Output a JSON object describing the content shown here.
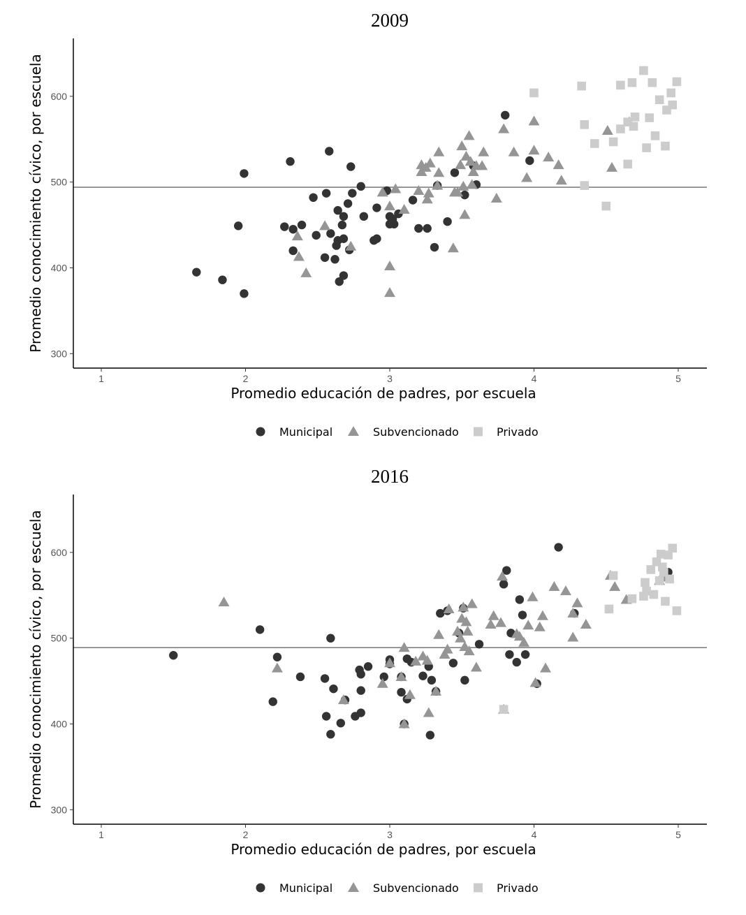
{
  "colors": {
    "Municipal": "#333333",
    "Subvencionado": "#959595",
    "Privado": "#cccccc",
    "reference_line": "#808080",
    "axis": "#000000"
  },
  "chart_data": [
    {
      "type": "scatter",
      "title": "2009",
      "xlabel": "Promedio educación de padres, por escuela",
      "ylabel": "Promedio conocimiento cívico, por escuela",
      "xlim": [
        0.8,
        5.2
      ],
      "ylim": [
        282,
        667
      ],
      "xticks": [
        1,
        2,
        3,
        4,
        5
      ],
      "yticks": [
        300,
        400,
        500,
        600
      ],
      "grid": false,
      "legend_position": "bottom",
      "reference_line": 494,
      "series": [
        {
          "name": "Municipal",
          "marker": "circle",
          "points": [
            [
              1.66,
              395
            ],
            [
              1.84,
              386
            ],
            [
              1.95,
              449
            ],
            [
              1.99,
              370
            ],
            [
              1.99,
              510
            ],
            [
              2.27,
              448
            ],
            [
              2.31,
              524
            ],
            [
              2.33,
              420
            ],
            [
              2.33,
              445
            ],
            [
              2.39,
              450
            ],
            [
              2.47,
              482
            ],
            [
              2.49,
              438
            ],
            [
              2.55,
              412
            ],
            [
              2.56,
              487
            ],
            [
              2.58,
              536
            ],
            [
              2.59,
              440
            ],
            [
              2.62,
              410
            ],
            [
              2.63,
              426
            ],
            [
              2.64,
              467
            ],
            [
              2.64,
              432
            ],
            [
              2.65,
              384
            ],
            [
              2.67,
              450
            ],
            [
              2.68,
              460
            ],
            [
              2.68,
              434
            ],
            [
              2.68,
              391
            ],
            [
              2.71,
              475
            ],
            [
              2.72,
              421
            ],
            [
              2.73,
              518
            ],
            [
              2.74,
              487
            ],
            [
              2.8,
              495
            ],
            [
              2.82,
              460
            ],
            [
              2.89,
              432
            ],
            [
              2.91,
              470
            ],
            [
              2.91,
              434
            ],
            [
              2.98,
              490
            ],
            [
              3.0,
              460
            ],
            [
              3.0,
              451
            ],
            [
              3.02,
              457
            ],
            [
              3.03,
              451
            ],
            [
              3.06,
              463
            ],
            [
              3.16,
              479
            ],
            [
              3.2,
              446
            ],
            [
              3.26,
              446
            ],
            [
              3.31,
              424
            ],
            [
              3.33,
              496
            ],
            [
              3.4,
              454
            ],
            [
              3.45,
              511
            ],
            [
              3.52,
              485
            ],
            [
              3.6,
              497
            ],
            [
              3.8,
              578
            ],
            [
              3.97,
              525
            ],
            [
              3.58,
              519
            ]
          ]
        },
        {
          "name": "Subvencionado",
          "marker": "triangle",
          "points": [
            [
              2.36,
              437
            ],
            [
              2.37,
              413
            ],
            [
              2.42,
              394
            ],
            [
              2.55,
              449
            ],
            [
              2.73,
              425
            ],
            [
              2.95,
              488
            ],
            [
              3.0,
              472
            ],
            [
              3.0,
              402
            ],
            [
              3.0,
              371
            ],
            [
              3.04,
              492
            ],
            [
              3.1,
              468
            ],
            [
              3.2,
              490
            ],
            [
              3.22,
              520
            ],
            [
              3.22,
              512
            ],
            [
              3.25,
              517
            ],
            [
              3.26,
              480
            ],
            [
              3.27,
              487
            ],
            [
              3.28,
              522
            ],
            [
              3.33,
              496
            ],
            [
              3.34,
              535
            ],
            [
              3.34,
              511
            ],
            [
              3.44,
              423
            ],
            [
              3.47,
              488
            ],
            [
              3.49,
              520
            ],
            [
              3.5,
              542
            ],
            [
              3.51,
              495
            ],
            [
              3.52,
              462
            ],
            [
              3.53,
              530
            ],
            [
              3.55,
              554
            ],
            [
              3.56,
              524
            ],
            [
              3.57,
              497
            ],
            [
              3.58,
              512
            ],
            [
              3.6,
              519
            ],
            [
              3.64,
              519
            ],
            [
              3.65,
              535
            ],
            [
              3.74,
              481
            ],
            [
              3.79,
              562
            ],
            [
              3.86,
              535
            ],
            [
              3.95,
              505
            ],
            [
              4.0,
              571
            ],
            [
              4.0,
              537
            ],
            [
              4.1,
              529
            ],
            [
              4.17,
              520
            ],
            [
              4.19,
              502
            ],
            [
              4.51,
              560
            ],
            [
              4.54,
              517
            ],
            [
              4.66,
              570
            ],
            [
              3.45,
              488
            ]
          ]
        },
        {
          "name": "Privado",
          "marker": "square",
          "points": [
            [
              4.0,
              604
            ],
            [
              4.33,
              612
            ],
            [
              4.35,
              567
            ],
            [
              4.35,
              496
            ],
            [
              4.42,
              545
            ],
            [
              4.5,
              472
            ],
            [
              4.55,
              547
            ],
            [
              4.6,
              562
            ],
            [
              4.6,
              613
            ],
            [
              4.65,
              521
            ],
            [
              4.65,
              570
            ],
            [
              4.68,
              616
            ],
            [
              4.69,
              565
            ],
            [
              4.7,
              576
            ],
            [
              4.76,
              630
            ],
            [
              4.78,
              540
            ],
            [
              4.8,
              575
            ],
            [
              4.82,
              616
            ],
            [
              4.84,
              554
            ],
            [
              4.87,
              596
            ],
            [
              4.91,
              542
            ],
            [
              4.92,
              584
            ],
            [
              4.95,
              604
            ],
            [
              4.96,
              590
            ],
            [
              4.99,
              617
            ]
          ]
        }
      ]
    },
    {
      "type": "scatter",
      "title": "2016",
      "xlabel": "Promedio educación de padres, por escuela",
      "ylabel": "Promedio conocimiento cívico, por escuela",
      "xlim": [
        0.8,
        5.2
      ],
      "ylim": [
        282,
        667
      ],
      "xticks": [
        1,
        2,
        3,
        4,
        5
      ],
      "yticks": [
        300,
        400,
        500,
        600
      ],
      "grid": false,
      "legend_position": "bottom",
      "reference_line": 489,
      "series": [
        {
          "name": "Municipal",
          "marker": "circle",
          "points": [
            [
              1.5,
              480
            ],
            [
              2.1,
              510
            ],
            [
              2.19,
              426
            ],
            [
              2.22,
              478
            ],
            [
              2.38,
              455
            ],
            [
              2.55,
              453
            ],
            [
              2.56,
              409
            ],
            [
              2.59,
              500
            ],
            [
              2.59,
              388
            ],
            [
              2.61,
              441
            ],
            [
              2.66,
              401
            ],
            [
              2.69,
              428
            ],
            [
              2.76,
              409
            ],
            [
              2.79,
              463
            ],
            [
              2.8,
              458
            ],
            [
              2.8,
              439
            ],
            [
              2.8,
              413
            ],
            [
              2.85,
              467
            ],
            [
              2.96,
              455
            ],
            [
              3.0,
              475
            ],
            [
              3.0,
              470
            ],
            [
              3.08,
              437
            ],
            [
              3.08,
              455
            ],
            [
              3.1,
              400
            ],
            [
              3.12,
              476
            ],
            [
              3.12,
              429
            ],
            [
              3.15,
              472
            ],
            [
              3.23,
              456
            ],
            [
              3.27,
              467
            ],
            [
              3.28,
              387
            ],
            [
              3.29,
              451
            ],
            [
              3.32,
              438
            ],
            [
              3.35,
              529
            ],
            [
              3.4,
              532
            ],
            [
              3.44,
              471
            ],
            [
              3.48,
              506
            ],
            [
              3.51,
              535
            ],
            [
              3.52,
              451
            ],
            [
              3.62,
              493
            ],
            [
              3.79,
              563
            ],
            [
              3.81,
              579
            ],
            [
              3.83,
              481
            ],
            [
              3.84,
              506
            ],
            [
              3.88,
              472
            ],
            [
              3.9,
              545
            ],
            [
              3.92,
              527
            ],
            [
              3.94,
              481
            ],
            [
              4.02,
              447
            ],
            [
              4.17,
              606
            ],
            [
              4.28,
              529
            ],
            [
              4.93,
              577
            ]
          ]
        },
        {
          "name": "Subvencionado",
          "marker": "triangle",
          "points": [
            [
              1.85,
              542
            ],
            [
              2.22,
              465
            ],
            [
              2.68,
              428
            ],
            [
              2.95,
              447
            ],
            [
              3.0,
              471
            ],
            [
              3.08,
              455
            ],
            [
              3.1,
              489
            ],
            [
              3.1,
              400
            ],
            [
              3.14,
              434
            ],
            [
              3.18,
              473
            ],
            [
              3.23,
              479
            ],
            [
              3.26,
              474
            ],
            [
              3.27,
              413
            ],
            [
              3.32,
              438
            ],
            [
              3.34,
              504
            ],
            [
              3.38,
              481
            ],
            [
              3.4,
              487
            ],
            [
              3.41,
              534
            ],
            [
              3.47,
              508
            ],
            [
              3.49,
              500
            ],
            [
              3.5,
              523
            ],
            [
              3.51,
              536
            ],
            [
              3.52,
              490
            ],
            [
              3.53,
              519
            ],
            [
              3.54,
              508
            ],
            [
              3.55,
              485
            ],
            [
              3.57,
              540
            ],
            [
              3.6,
              466
            ],
            [
              3.7,
              516
            ],
            [
              3.72,
              526
            ],
            [
              3.77,
              518
            ],
            [
              3.78,
              572
            ],
            [
              3.79,
              417
            ],
            [
              3.88,
              505
            ],
            [
              3.9,
              502
            ],
            [
              3.93,
              495
            ],
            [
              3.96,
              515
            ],
            [
              3.99,
              548
            ],
            [
              4.01,
              448
            ],
            [
              4.04,
              513
            ],
            [
              4.06,
              526
            ],
            [
              4.08,
              465
            ],
            [
              4.14,
              560
            ],
            [
              4.22,
              555
            ],
            [
              4.27,
              529
            ],
            [
              4.27,
              501
            ],
            [
              4.3,
              541
            ],
            [
              4.36,
              516
            ],
            [
              4.53,
              573
            ],
            [
              4.56,
              560
            ],
            [
              4.64,
              545
            ],
            [
              4.87,
              567
            ],
            [
              4.89,
              571
            ]
          ]
        },
        {
          "name": "Privado",
          "marker": "square",
          "points": [
            [
              3.79,
              417
            ],
            [
              4.52,
              534
            ],
            [
              4.55,
              573
            ],
            [
              4.68,
              546
            ],
            [
              4.76,
              549
            ],
            [
              4.77,
              565
            ],
            [
              4.78,
              555
            ],
            [
              4.81,
              580
            ],
            [
              4.83,
              551
            ],
            [
              4.85,
              589
            ],
            [
              4.87,
              567
            ],
            [
              4.88,
              598
            ],
            [
              4.89,
              583
            ],
            [
              4.9,
              577
            ],
            [
              4.91,
              543
            ],
            [
              4.93,
              597
            ],
            [
              4.94,
              569
            ],
            [
              4.96,
              605
            ],
            [
              4.99,
              532
            ]
          ]
        }
      ]
    }
  ]
}
